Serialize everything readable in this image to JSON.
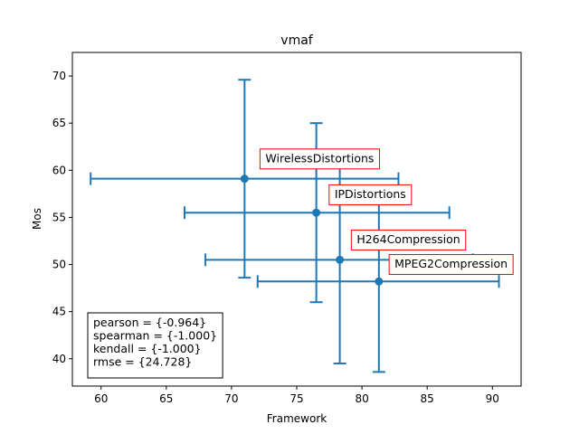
{
  "chart_data": {
    "type": "scatter",
    "title": "vmaf",
    "xlabel": "Framework",
    "ylabel": "Mos",
    "xlim": [
      57.8,
      92.2
    ],
    "ylim": [
      37.1,
      72.5
    ],
    "xticks": [
      "60",
      "65",
      "70",
      "75",
      "80",
      "85",
      "90"
    ],
    "yticks": [
      "40",
      "45",
      "50",
      "55",
      "60",
      "65",
      "70"
    ],
    "grid": false,
    "series_color": "#1f77b4",
    "points": [
      {
        "label": "WirelessDistortions",
        "x": 71.0,
        "y": 59.1,
        "xerr_low": 59.2,
        "xerr_high": 82.8,
        "yerr_low": 48.6,
        "yerr_high": 69.6
      },
      {
        "label": "IPDistortions",
        "x": 76.5,
        "y": 55.5,
        "xerr_low": 66.4,
        "xerr_high": 86.7,
        "yerr_low": 46.0,
        "yerr_high": 65.0
      },
      {
        "label": "H264Compression",
        "x": 78.3,
        "y": 50.5,
        "xerr_low": 68.0,
        "xerr_high": 88.5,
        "yerr_low": 39.5,
        "yerr_high": 61.5
      },
      {
        "label": "MPEG2Compression",
        "x": 81.3,
        "y": 48.2,
        "xerr_low": 72.0,
        "xerr_high": 90.5,
        "yerr_low": 38.6,
        "yerr_high": 57.8
      }
    ],
    "label_positions": [
      {
        "x": 72.6,
        "y": 61.2
      },
      {
        "x": 77.9,
        "y": 57.4
      },
      {
        "x": 79.6,
        "y": 52.6
      },
      {
        "x": 82.5,
        "y": 50.0
      }
    ],
    "label_box_color": "#ff0000",
    "stats": [
      "pearson = {-0.964}",
      "spearman = {-1.000}",
      "kendall = {-1.000}",
      "rmse = {24.728}"
    ],
    "stats_placement": "bottom-left"
  }
}
